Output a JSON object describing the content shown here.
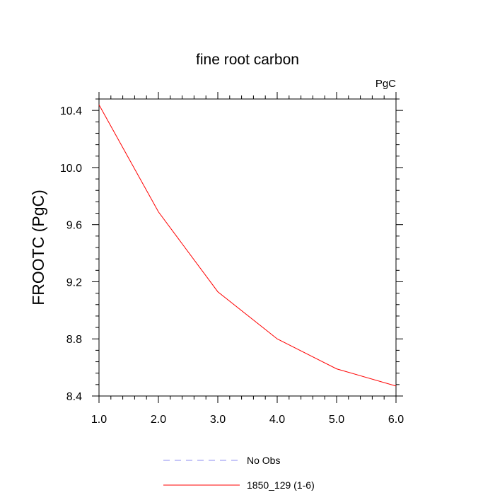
{
  "chart_data": {
    "type": "line",
    "title": "fine root carbon",
    "units_label": "PgC",
    "ylabel": "FROOTC  (PgC)",
    "xlabel": "",
    "xlim": [
      1.0,
      6.0
    ],
    "ylim": [
      8.4,
      10.48
    ],
    "x_ticks": [
      1.0,
      2.0,
      3.0,
      4.0,
      5.0,
      6.0
    ],
    "x_tick_labels": [
      "1.0",
      "2.0",
      "3.0",
      "4.0",
      "5.0",
      "6.0"
    ],
    "y_ticks": [
      8.4,
      8.8,
      9.2,
      9.6,
      10.0,
      10.4
    ],
    "y_tick_labels": [
      "8.4",
      "8.8",
      "9.2",
      "9.6",
      "10.0",
      "10.4"
    ],
    "grid": false,
    "legend_position": "bottom-center",
    "series": [
      {
        "name": "No Obs",
        "color": "#8c8cf0",
        "dash": "dashed",
        "x": [],
        "values": []
      },
      {
        "name": "1850_129 (1-6)",
        "color": "#ff0000",
        "dash": "solid",
        "x": [
          1.0,
          2.0,
          3.0,
          4.0,
          5.0,
          6.0
        ],
        "values": [
          10.44,
          9.69,
          9.13,
          8.8,
          8.59,
          8.47
        ]
      }
    ]
  }
}
